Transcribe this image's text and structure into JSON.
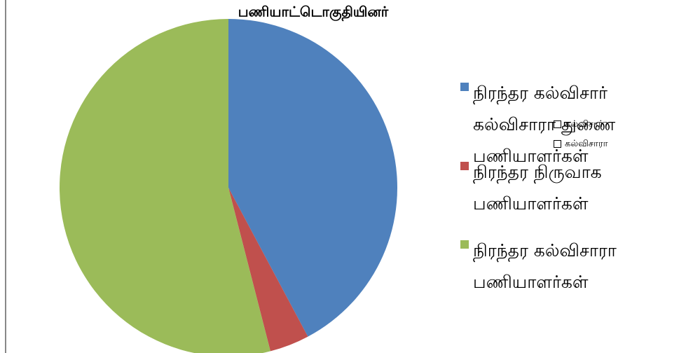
{
  "chart_data": {
    "type": "pie",
    "title": "பணியாட்டொகுதியினர்",
    "categories": [
      "நிரந்தர கல்விசார் கல்விசாரா துணை பணியாளர்கள்",
      "நிரந்தர நிருவாக பணியாளர்கள்",
      "நிரந்தர கல்விசாரா பணியாளர்கள்"
    ],
    "values": [
      42.2,
      3.8,
      54
    ],
    "colors": [
      "#4f81bd",
      "#c0504d",
      "#9bbb59"
    ],
    "legend": "right",
    "annotations": [
      "கல்விசார்",
      "கல்விசாரா"
    ]
  }
}
